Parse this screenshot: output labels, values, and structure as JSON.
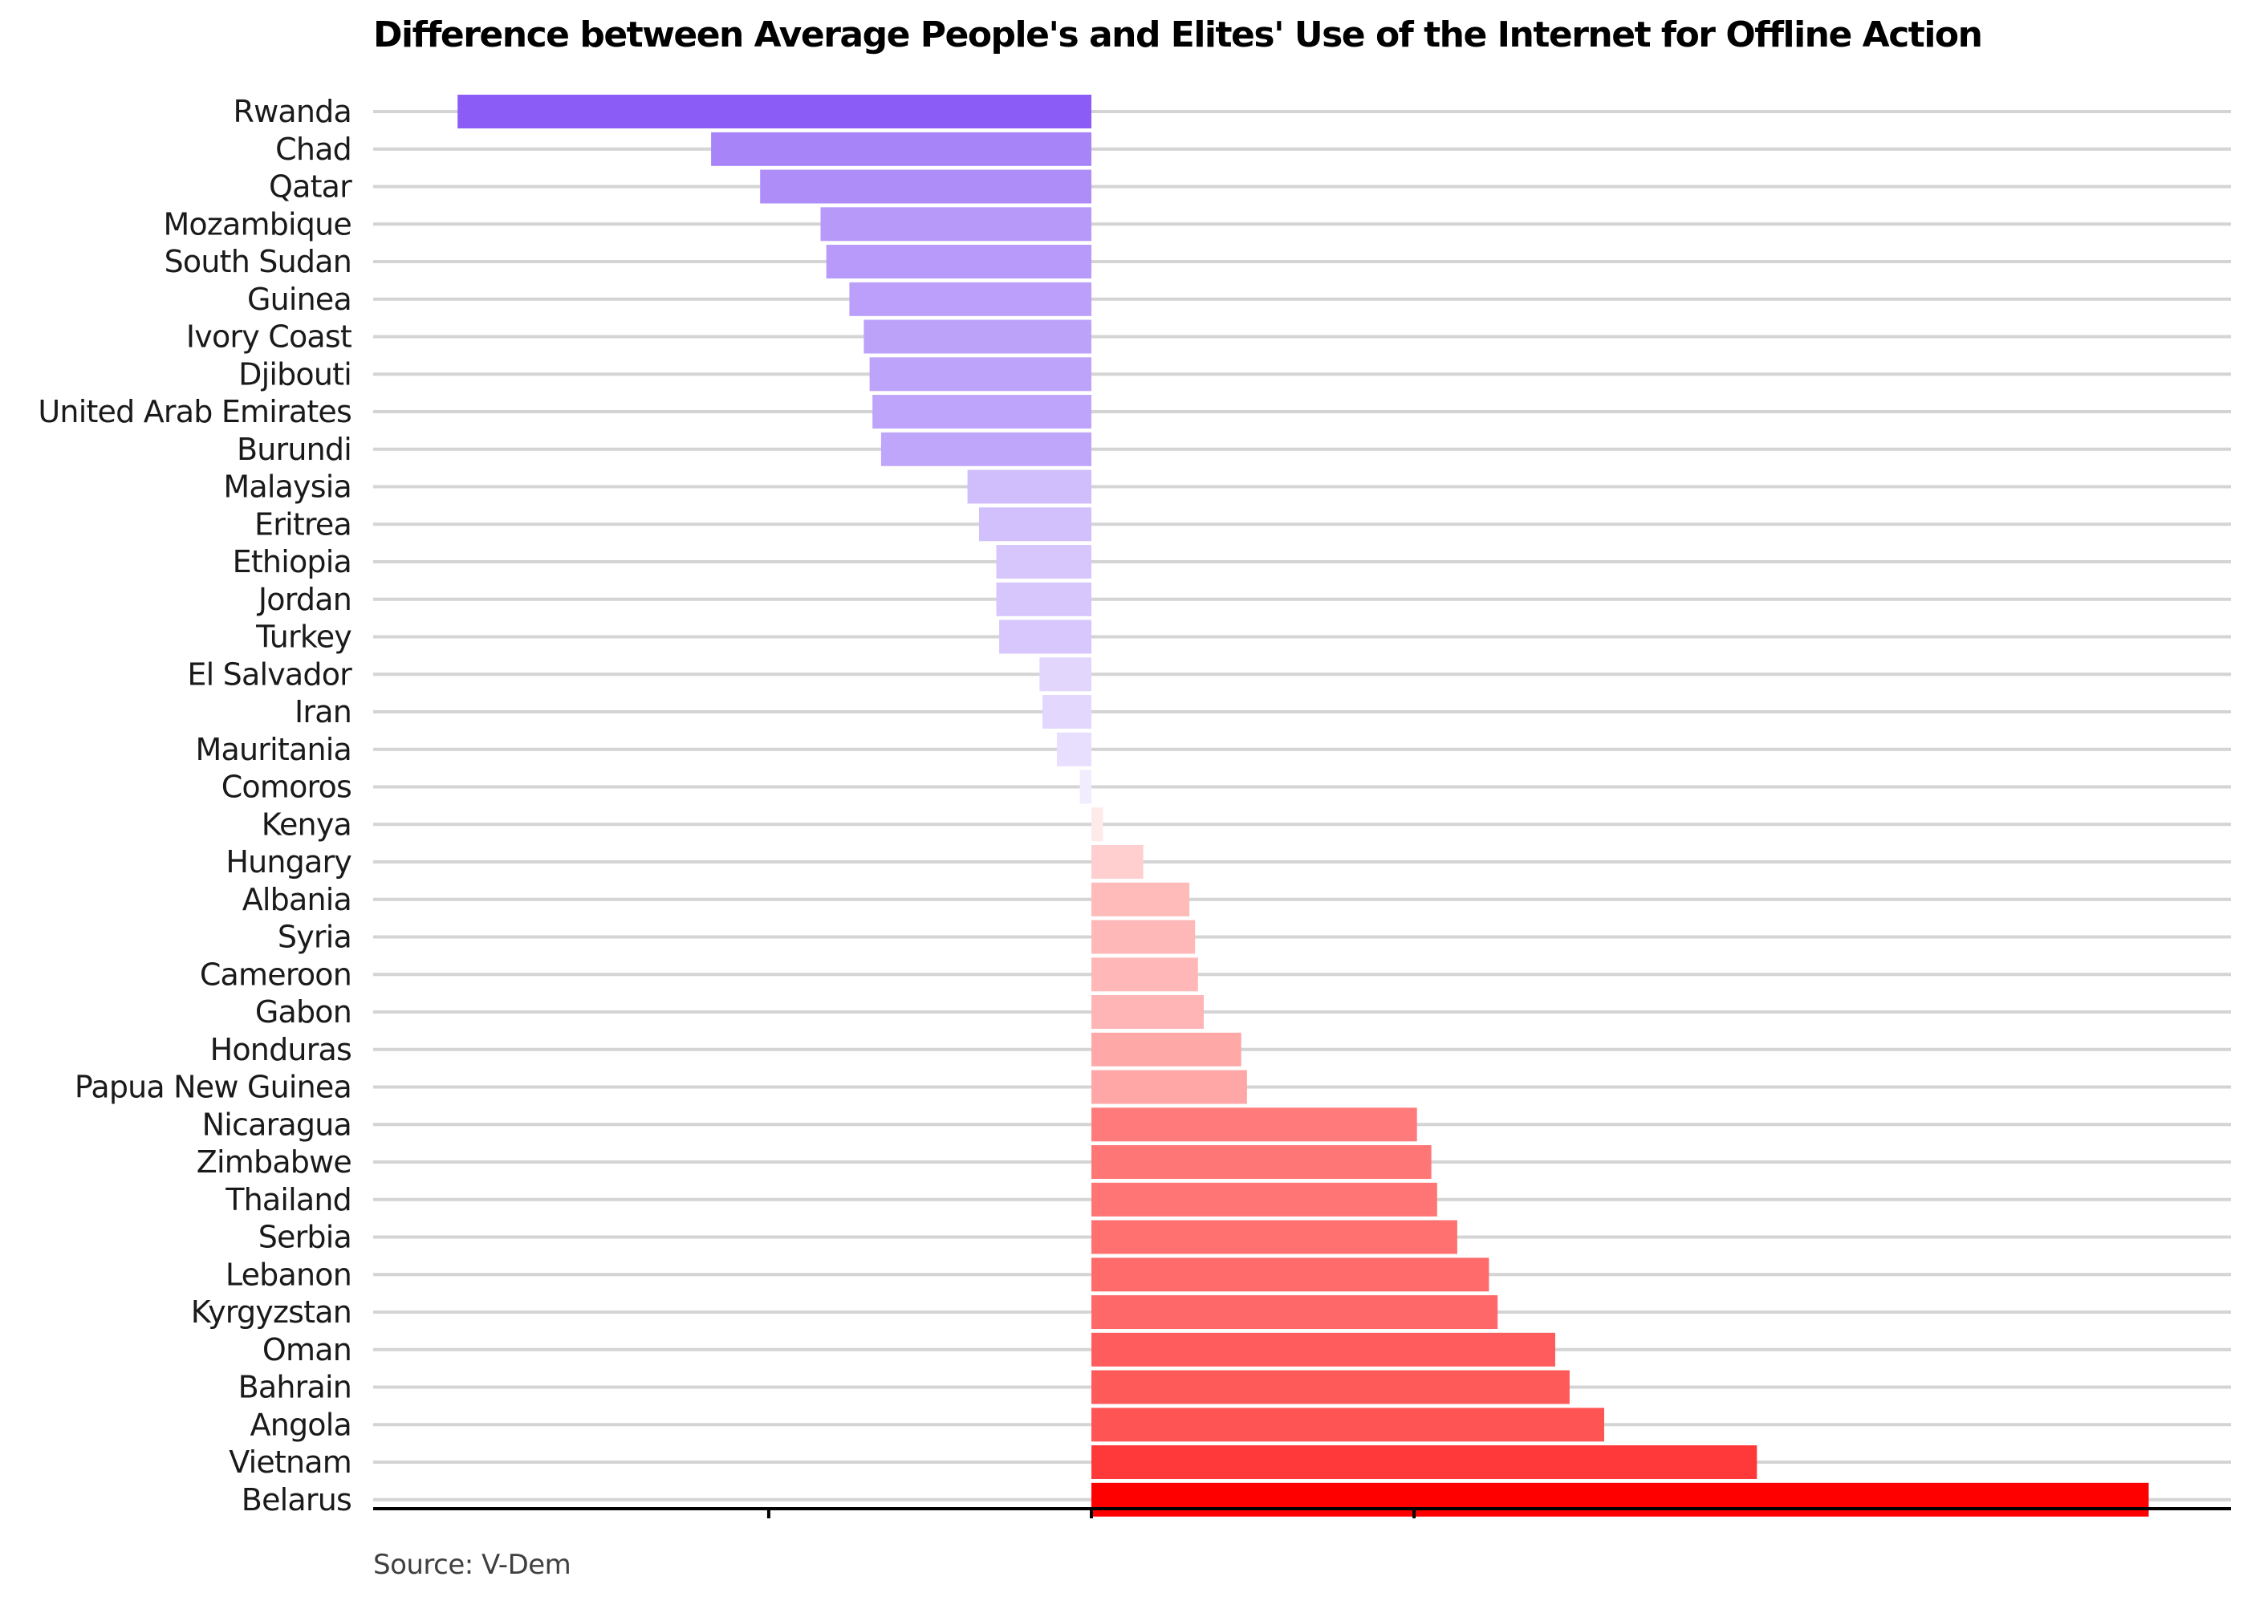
{
  "chart_data": {
    "type": "bar",
    "orientation": "horizontal",
    "title": "Difference between Average People's and Elites' Use of the Internet for Offline Action",
    "source": "Source: V-Dem",
    "grid": true,
    "xlim": [
      -1.0,
      2.0
    ],
    "categories": [
      "Rwanda",
      "Chad",
      "Qatar",
      "Mozambique",
      "South Sudan",
      "Guinea",
      "Ivory Coast",
      "Djibouti",
      "United Arab Emirates",
      "Burundi",
      "Malaysia",
      "Eritrea",
      "Ethiopia",
      "Jordan",
      "Turkey",
      "El Salvador",
      "Iran",
      "Mauritania",
      "Comoros",
      "Kenya",
      "Hungary",
      "Albania",
      "Syria",
      "Cameroon",
      "Gabon",
      "Honduras",
      "Papua New Guinea",
      "Nicaragua",
      "Zimbabwe",
      "Thailand",
      "Serbia",
      "Lebanon",
      "Kyrgyzstan",
      "Oman",
      "Bahrain",
      "Angola",
      "Vietnam",
      "Belarus"
    ],
    "values": [
      -1.1,
      -0.66,
      -0.575,
      -0.47,
      -0.46,
      -0.42,
      -0.395,
      -0.385,
      -0.38,
      -0.365,
      -0.215,
      -0.195,
      -0.165,
      -0.165,
      -0.16,
      -0.09,
      -0.085,
      -0.06,
      -0.02,
      0.02,
      0.09,
      0.17,
      0.18,
      0.185,
      0.195,
      0.26,
      0.27,
      0.565,
      0.59,
      0.6,
      0.635,
      0.69,
      0.705,
      0.805,
      0.83,
      0.89,
      1.155,
      1.835
    ],
    "colors": {
      "negative_max": "#8b5cf6",
      "positive_max": "#ff0000"
    }
  }
}
